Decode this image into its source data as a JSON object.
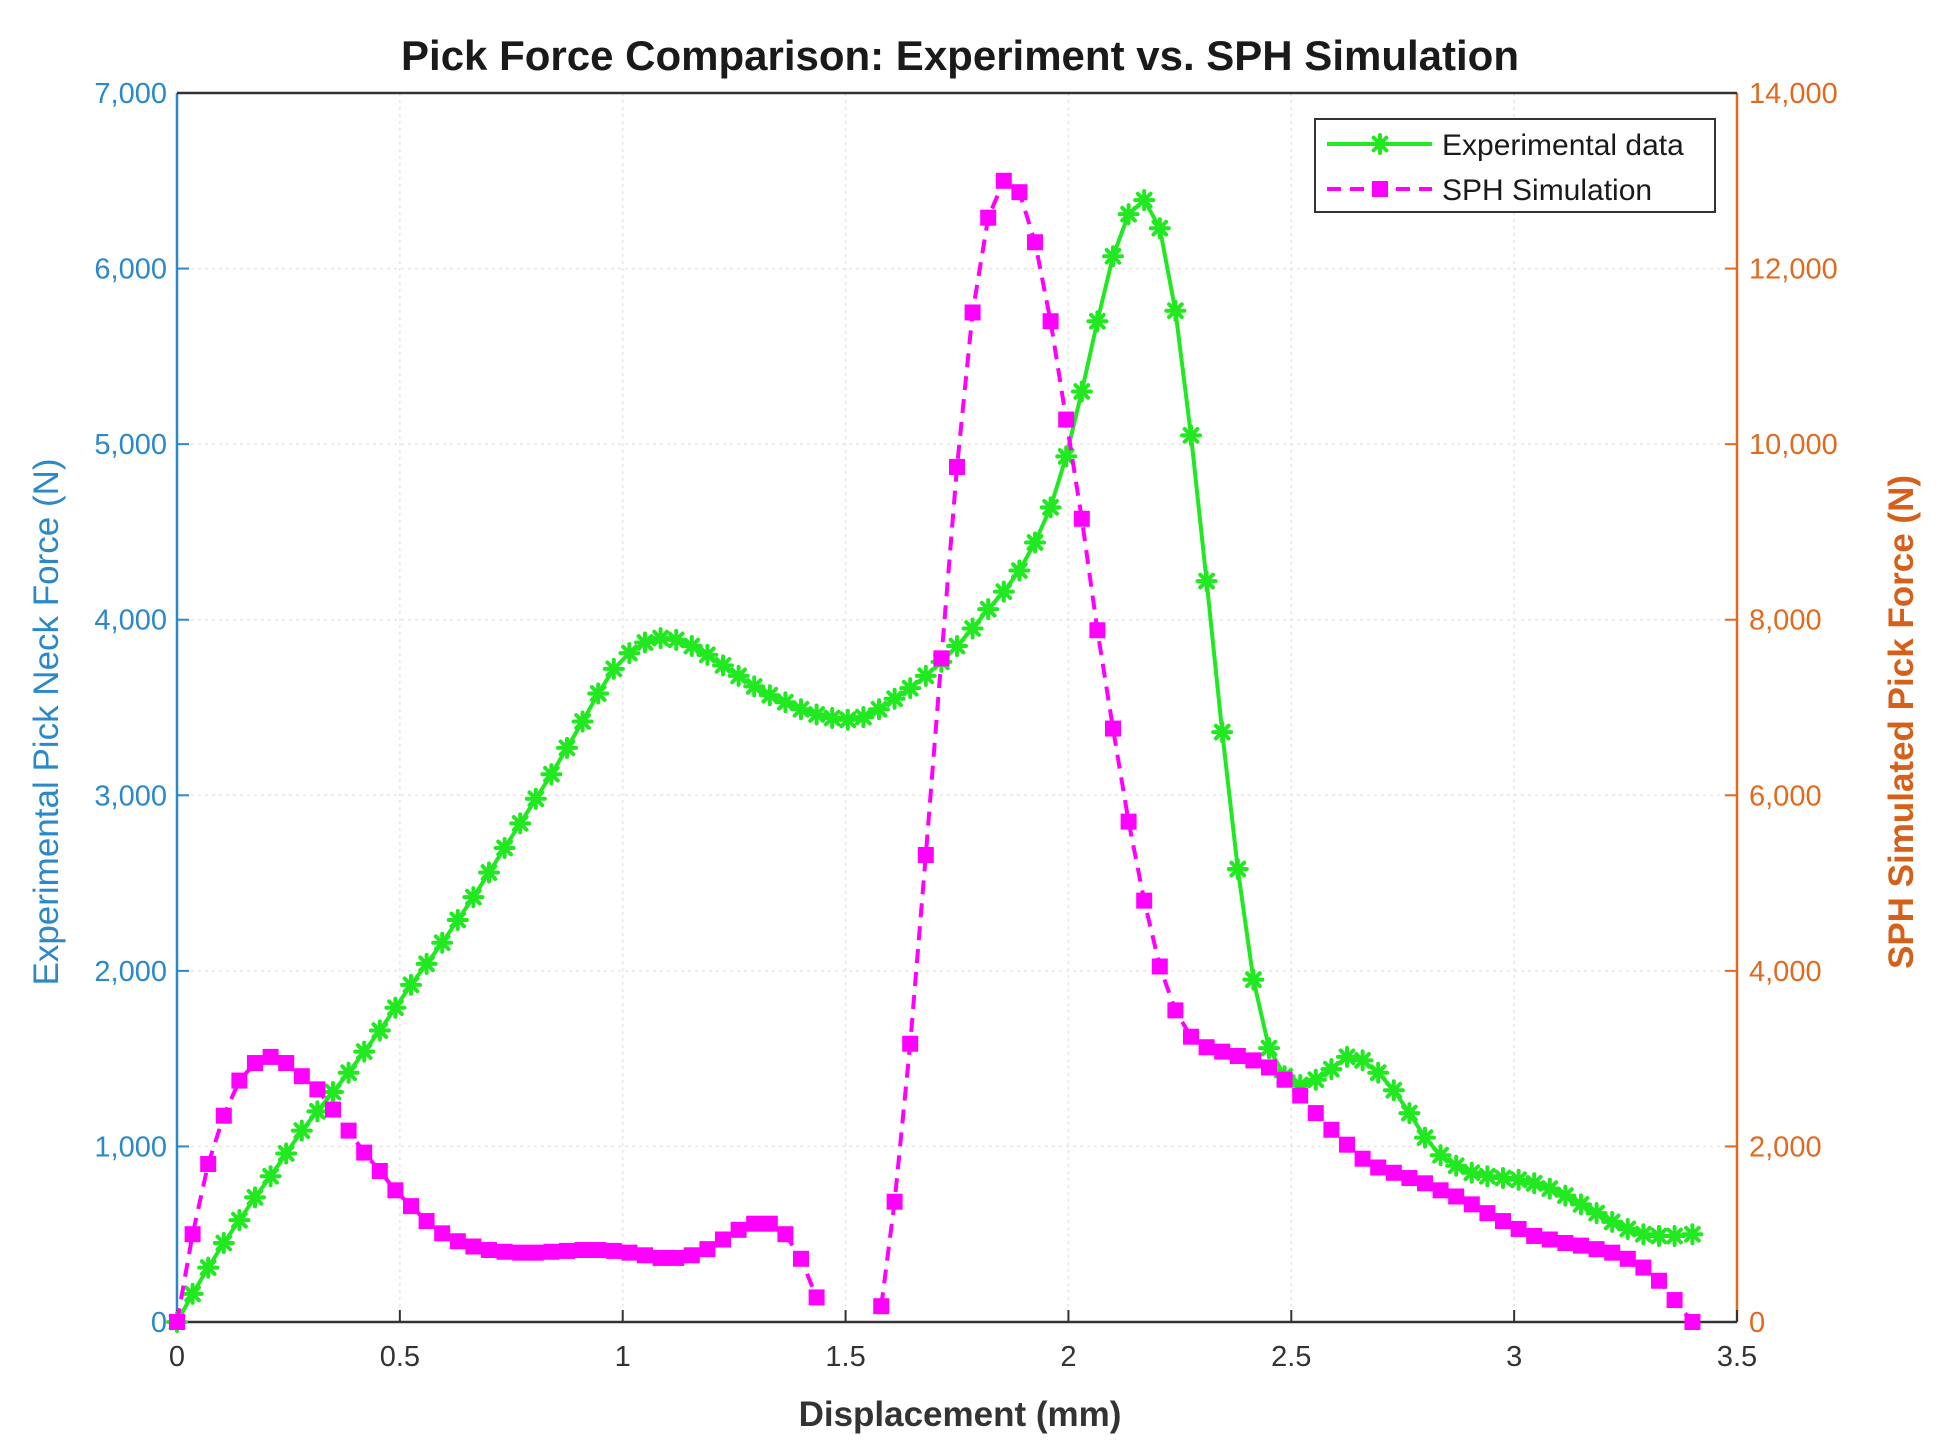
{
  "chart_data": {
    "type": "line",
    "title": "Pick Force Comparison: Experiment vs. SPH Simulation",
    "xlabel": "Displacement (mm)",
    "ylabel_left": "Experimental Pick Neck Force (N)",
    "ylabel_right": "SPH Simulated Pick Force (N)",
    "xlim": [
      0,
      3.5
    ],
    "ylim_left": [
      0,
      7000
    ],
    "ylim_right": [
      0,
      14000
    ],
    "x_ticks": [
      0,
      0.5,
      1,
      1.5,
      2,
      2.5,
      3,
      3.5
    ],
    "x_tick_labels": [
      "0",
      "0.5",
      "1",
      "1.5",
      "2",
      "2.5",
      "3",
      "3.5"
    ],
    "y_left_ticks": [
      0,
      1000,
      2000,
      3000,
      4000,
      5000,
      6000,
      7000
    ],
    "y_left_tick_labels": [
      "0",
      "1,000",
      "2,000",
      "3,000",
      "4,000",
      "5,000",
      "6,000",
      "7,000"
    ],
    "y_right_ticks": [
      0,
      2000,
      4000,
      6000,
      8000,
      10000,
      12000,
      14000
    ],
    "y_right_tick_labels": [
      "0",
      "2,000",
      "4,000",
      "6,000",
      "8,000",
      "10,000",
      "12,000",
      "14,000"
    ],
    "grid": true,
    "legend_position": "top-right",
    "colors": {
      "experimental": "#22e822",
      "sph": "#ff00ff",
      "left_axis": "#2b88c9",
      "right_axis": "#e06a1f",
      "grid": "#e6e6e6",
      "axis_box": "#333333"
    },
    "series": [
      {
        "name": "Experimental data",
        "axis": "left",
        "style": "solid-star",
        "points": [
          [
            0,
            0
          ],
          [
            0.035,
            160
          ],
          [
            0.07,
            310
          ],
          [
            0.105,
            450
          ],
          [
            0.14,
            580
          ],
          [
            0.175,
            710
          ],
          [
            0.21,
            830
          ],
          [
            0.245,
            960
          ],
          [
            0.28,
            1090
          ],
          [
            0.315,
            1200
          ],
          [
            0.35,
            1310
          ],
          [
            0.385,
            1420
          ],
          [
            0.42,
            1540
          ],
          [
            0.455,
            1660
          ],
          [
            0.49,
            1790
          ],
          [
            0.525,
            1920
          ],
          [
            0.56,
            2040
          ],
          [
            0.595,
            2160
          ],
          [
            0.63,
            2290
          ],
          [
            0.665,
            2420
          ],
          [
            0.7,
            2560
          ],
          [
            0.735,
            2700
          ],
          [
            0.77,
            2840
          ],
          [
            0.805,
            2980
          ],
          [
            0.84,
            3120
          ],
          [
            0.875,
            3270
          ],
          [
            0.91,
            3420
          ],
          [
            0.945,
            3580
          ],
          [
            0.98,
            3720
          ],
          [
            1.015,
            3810
          ],
          [
            1.05,
            3870
          ],
          [
            1.085,
            3895
          ],
          [
            1.12,
            3885
          ],
          [
            1.155,
            3850
          ],
          [
            1.19,
            3800
          ],
          [
            1.225,
            3740
          ],
          [
            1.26,
            3680
          ],
          [
            1.295,
            3620
          ],
          [
            1.33,
            3570
          ],
          [
            1.365,
            3530
          ],
          [
            1.4,
            3490
          ],
          [
            1.435,
            3460
          ],
          [
            1.47,
            3440
          ],
          [
            1.505,
            3430
          ],
          [
            1.54,
            3445
          ],
          [
            1.575,
            3490
          ],
          [
            1.61,
            3550
          ],
          [
            1.645,
            3610
          ],
          [
            1.68,
            3680
          ],
          [
            1.715,
            3760
          ],
          [
            1.75,
            3850
          ],
          [
            1.785,
            3950
          ],
          [
            1.82,
            4060
          ],
          [
            1.855,
            4160
          ],
          [
            1.89,
            4280
          ],
          [
            1.925,
            4440
          ],
          [
            1.96,
            4640
          ],
          [
            1.995,
            4930
          ],
          [
            2.03,
            5300
          ],
          [
            2.065,
            5700
          ],
          [
            2.1,
            6070
          ],
          [
            2.135,
            6310
          ],
          [
            2.17,
            6390
          ],
          [
            2.205,
            6230
          ],
          [
            2.24,
            5760
          ],
          [
            2.275,
            5050
          ],
          [
            2.31,
            4220
          ],
          [
            2.345,
            3360
          ],
          [
            2.38,
            2580
          ],
          [
            2.415,
            1950
          ],
          [
            2.45,
            1560
          ],
          [
            2.485,
            1400
          ],
          [
            2.52,
            1350
          ],
          [
            2.555,
            1380
          ],
          [
            2.59,
            1440
          ],
          [
            2.625,
            1510
          ],
          [
            2.66,
            1490
          ],
          [
            2.695,
            1420
          ],
          [
            2.73,
            1320
          ],
          [
            2.765,
            1190
          ],
          [
            2.8,
            1050
          ],
          [
            2.835,
            950
          ],
          [
            2.87,
            890
          ],
          [
            2.905,
            850
          ],
          [
            2.94,
            830
          ],
          [
            2.975,
            820
          ],
          [
            3.01,
            810
          ],
          [
            3.045,
            790
          ],
          [
            3.08,
            760
          ],
          [
            3.115,
            720
          ],
          [
            3.15,
            670
          ],
          [
            3.185,
            620
          ],
          [
            3.22,
            570
          ],
          [
            3.255,
            530
          ],
          [
            3.29,
            500
          ],
          [
            3.325,
            490
          ],
          [
            3.36,
            490
          ],
          [
            3.4,
            500
          ]
        ]
      },
      {
        "name": "SPH Simulation",
        "axis": "right",
        "style": "dashed-square",
        "points": [
          [
            0,
            0
          ],
          [
            0.035,
            1000
          ],
          [
            0.07,
            1800
          ],
          [
            0.105,
            2350
          ],
          [
            0.14,
            2750
          ],
          [
            0.175,
            2950
          ],
          [
            0.21,
            3020
          ],
          [
            0.245,
            2950
          ],
          [
            0.28,
            2800
          ],
          [
            0.315,
            2650
          ],
          [
            0.35,
            2420
          ],
          [
            0.385,
            2180
          ],
          [
            0.42,
            1930
          ],
          [
            0.455,
            1720
          ],
          [
            0.49,
            1500
          ],
          [
            0.525,
            1320
          ],
          [
            0.56,
            1150
          ],
          [
            0.595,
            1010
          ],
          [
            0.63,
            920
          ],
          [
            0.665,
            860
          ],
          [
            0.7,
            820
          ],
          [
            0.735,
            800
          ],
          [
            0.77,
            790
          ],
          [
            0.805,
            790
          ],
          [
            0.84,
            800
          ],
          [
            0.875,
            810
          ],
          [
            0.91,
            820
          ],
          [
            0.945,
            820
          ],
          [
            0.98,
            810
          ],
          [
            1.015,
            790
          ],
          [
            1.05,
            760
          ],
          [
            1.085,
            730
          ],
          [
            1.12,
            730
          ],
          [
            1.155,
            760
          ],
          [
            1.19,
            830
          ],
          [
            1.225,
            940
          ],
          [
            1.26,
            1050
          ],
          [
            1.295,
            1120
          ],
          [
            1.33,
            1120
          ],
          [
            1.365,
            1000
          ],
          [
            1.4,
            720
          ],
          [
            1.435,
            280
          ],
          [
            1.58,
            180
          ],
          [
            1.61,
            1370
          ],
          [
            1.645,
            3170
          ],
          [
            1.68,
            5320
          ],
          [
            1.715,
            7560
          ],
          [
            1.75,
            9740
          ],
          [
            1.785,
            11500
          ],
          [
            1.82,
            12580
          ],
          [
            1.855,
            13000
          ],
          [
            1.89,
            12870
          ],
          [
            1.925,
            12300
          ],
          [
            1.96,
            11400
          ],
          [
            1.995,
            10280
          ],
          [
            2.03,
            9150
          ],
          [
            2.065,
            7880
          ],
          [
            2.1,
            6760
          ],
          [
            2.135,
            5700
          ],
          [
            2.17,
            4800
          ],
          [
            2.205,
            4050
          ],
          [
            2.24,
            3550
          ],
          [
            2.275,
            3250
          ],
          [
            2.31,
            3130
          ],
          [
            2.345,
            3080
          ],
          [
            2.38,
            3030
          ],
          [
            2.415,
            2980
          ],
          [
            2.45,
            2900
          ],
          [
            2.485,
            2760
          ],
          [
            2.52,
            2580
          ],
          [
            2.555,
            2380
          ],
          [
            2.59,
            2190
          ],
          [
            2.625,
            2020
          ],
          [
            2.66,
            1860
          ],
          [
            2.695,
            1760
          ],
          [
            2.73,
            1700
          ],
          [
            2.765,
            1640
          ],
          [
            2.8,
            1580
          ],
          [
            2.835,
            1500
          ],
          [
            2.87,
            1430
          ],
          [
            2.905,
            1340
          ],
          [
            2.94,
            1240
          ],
          [
            2.975,
            1150
          ],
          [
            3.01,
            1060
          ],
          [
            3.045,
            980
          ],
          [
            3.08,
            940
          ],
          [
            3.115,
            900
          ],
          [
            3.15,
            870
          ],
          [
            3.185,
            830
          ],
          [
            3.22,
            790
          ],
          [
            3.255,
            720
          ],
          [
            3.29,
            620
          ],
          [
            3.325,
            470
          ],
          [
            3.36,
            250
          ],
          [
            3.4,
            0
          ]
        ]
      }
    ]
  }
}
